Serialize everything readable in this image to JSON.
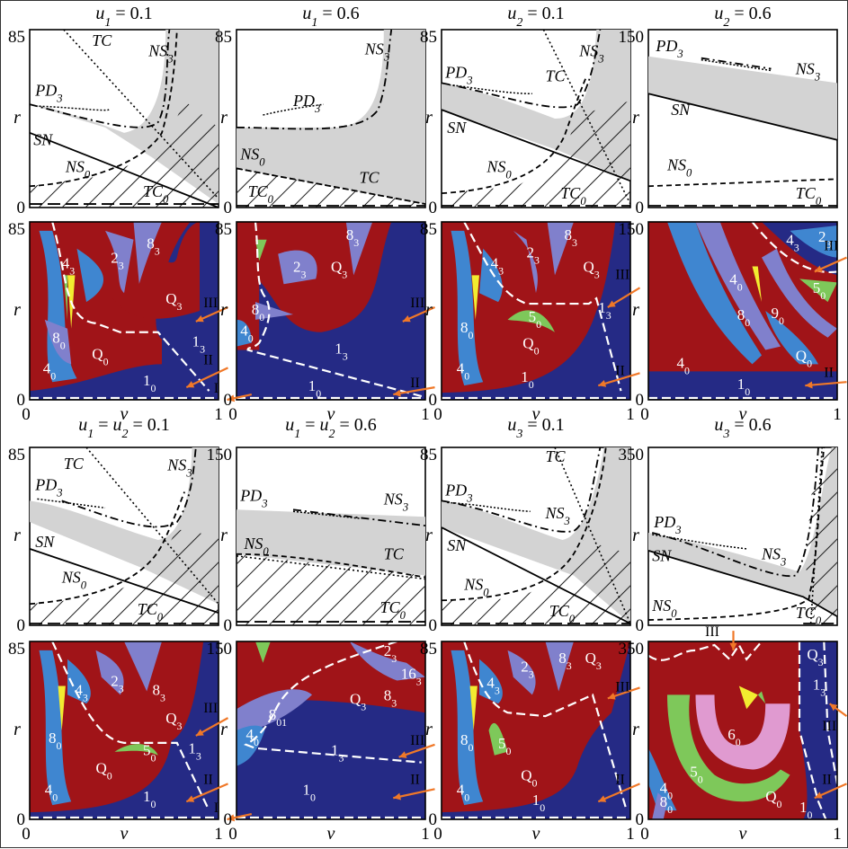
{
  "titles": [
    "u1 = 0.1",
    "u1 = 0.6",
    "u2 = 0.1",
    "u2 = 0.6",
    "u1 = u2 = 0.1",
    "u1 = u2 = 0.6",
    "u3 = 0.1",
    "u3 = 0.6"
  ],
  "y_max": [
    "85",
    "85",
    "85",
    "150",
    "85",
    "150",
    "85",
    "350"
  ],
  "y_zero": "0",
  "x_ticks": [
    "0",
    "1"
  ],
  "x_axis_label": "v",
  "y_axis_label": "r",
  "curve_labels": {
    "tc": "TC",
    "ns3": "NS3",
    "pd3": "PD3",
    "sn": "SN",
    "ns0": "NS0",
    "tc0": "TC0"
  },
  "region_labels": [
    "Q0",
    "Q3",
    "10",
    "13",
    "40",
    "43",
    "80",
    "83",
    "23",
    "50",
    "60",
    "90",
    "163",
    "801"
  ],
  "boundary_markers": [
    "I",
    "II",
    "III"
  ],
  "colors": {
    "navy": "#252a85",
    "red": "#a01418",
    "blue": "#3f86d0",
    "lavender": "#8080cc",
    "green": "#7ec85a",
    "pink": "#e09ad0",
    "yellow": "#f2ec30",
    "gray": "#d3d3d3",
    "arrow": "#f07828"
  }
}
